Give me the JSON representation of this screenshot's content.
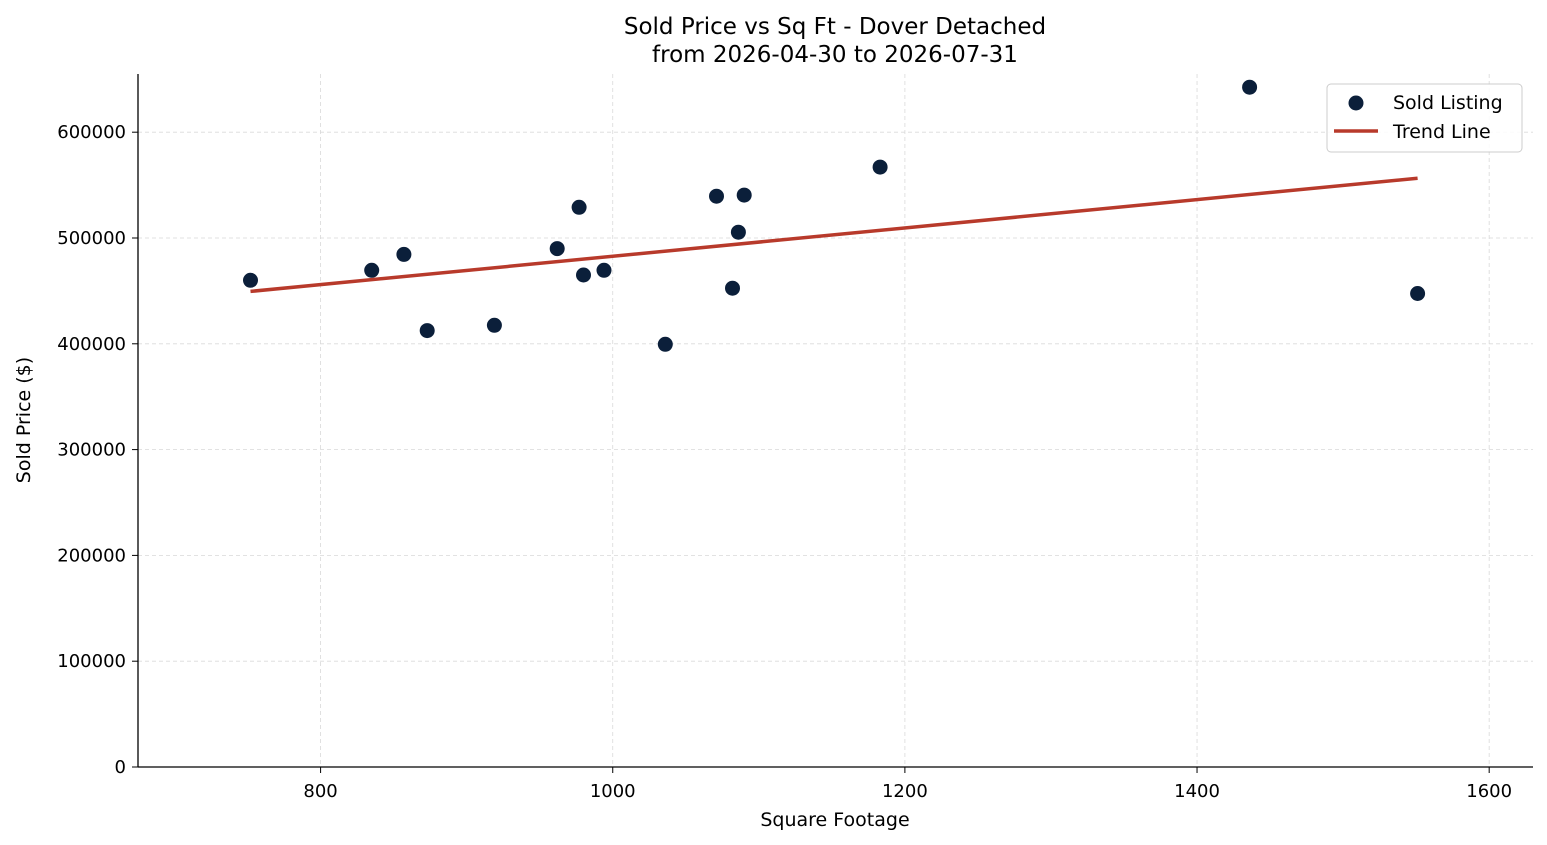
{
  "chart_data": {
    "type": "scatter",
    "title": "Sold Price vs Sq Ft - Dover Detached",
    "subtitle": "from 2026-04-30 to 2026-07-31",
    "xlabel": "Square Footage",
    "ylabel": "Sold Price ($)",
    "xlim": [
      675,
      1630
    ],
    "ylim": [
      0,
      655000
    ],
    "xticks": [
      800,
      1000,
      1200,
      1400,
      1600
    ],
    "yticks": [
      0,
      100000,
      200000,
      300000,
      400000,
      500000,
      600000
    ],
    "grid": true,
    "legend_position": "top-right",
    "series": [
      {
        "name": "Sold Listing",
        "kind": "scatter",
        "color": "#0b1f3a",
        "points": [
          {
            "x": 752,
            "y": 460000
          },
          {
            "x": 835,
            "y": 469500
          },
          {
            "x": 857,
            "y": 484500
          },
          {
            "x": 873,
            "y": 412500
          },
          {
            "x": 919,
            "y": 417500
          },
          {
            "x": 962,
            "y": 490000
          },
          {
            "x": 977,
            "y": 529000
          },
          {
            "x": 980,
            "y": 465000
          },
          {
            "x": 994,
            "y": 469500
          },
          {
            "x": 1036,
            "y": 399500
          },
          {
            "x": 1071,
            "y": 539500
          },
          {
            "x": 1082,
            "y": 452500
          },
          {
            "x": 1086,
            "y": 505500
          },
          {
            "x": 1090,
            "y": 540500
          },
          {
            "x": 1183,
            "y": 567000
          },
          {
            "x": 1436,
            "y": 642500
          },
          {
            "x": 1551,
            "y": 447500
          }
        ]
      },
      {
        "name": "Trend Line",
        "kind": "line",
        "color": "#b83a2b",
        "points": [
          {
            "x": 752,
            "y": 449500
          },
          {
            "x": 1551,
            "y": 556500
          }
        ]
      }
    ]
  }
}
